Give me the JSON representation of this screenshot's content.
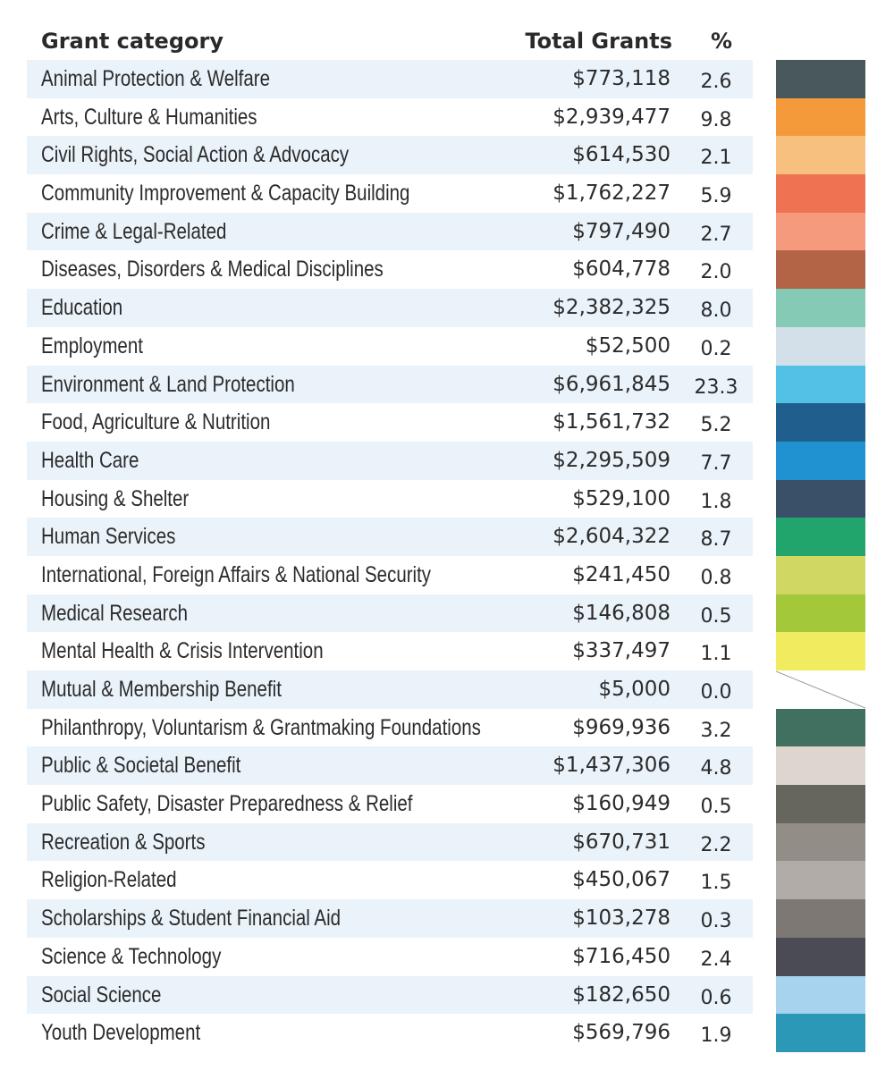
{
  "chart_data": {
    "type": "table",
    "columns": [
      "Grant category",
      "Total Grants",
      "%"
    ],
    "rows": [
      {
        "category": "Animal Protection & Welfare",
        "total": "$773,118",
        "pct": "2.6",
        "color": "#49585a"
      },
      {
        "category": "Arts, Culture & Humanities",
        "total": "$2,939,477",
        "pct": "9.8",
        "color": "#f59a3b"
      },
      {
        "category": "Civil Rights, Social Action & Advocacy",
        "total": "$614,530",
        "pct": "2.1",
        "color": "#f8c07e"
      },
      {
        "category": "Community Improvement & Capacity Building",
        "total": "$1,762,227",
        "pct": "5.9",
        "color": "#ef7352"
      },
      {
        "category": "Crime & Legal-Related",
        "total": "$797,490",
        "pct": "2.7",
        "color": "#f59a7c"
      },
      {
        "category": "Diseases, Disorders & Medical Disciplines",
        "total": "$604,778",
        "pct": "2.0",
        "color": "#b36446"
      },
      {
        "category": "Education",
        "total": "$2,382,325",
        "pct": "8.0",
        "color": "#84cab4"
      },
      {
        "category": "Employment",
        "total": "$52,500",
        "pct": "0.2",
        "color": "#d3e0e9"
      },
      {
        "category": "Environment & Land Protection",
        "total": "$6,961,845",
        "pct": "23.3",
        "color": "#51c1e6"
      },
      {
        "category": "Food, Agriculture & Nutrition",
        "total": "$1,561,732",
        "pct": "5.2",
        "color": "#205e8d"
      },
      {
        "category": "Health Care",
        "total": "$2,295,509",
        "pct": "7.7",
        "color": "#2092d1"
      },
      {
        "category": "Housing & Shelter",
        "total": "$529,100",
        "pct": "1.8",
        "color": "#3a5068"
      },
      {
        "category": "Human Services",
        "total": "$2,604,322",
        "pct": "8.7",
        "color": "#21a56c"
      },
      {
        "category": "International, Foreign Affairs & National Security",
        "total": "$241,450",
        "pct": "0.8",
        "color": "#d0d863"
      },
      {
        "category": "Medical Research",
        "total": "$146,808",
        "pct": "0.5",
        "color": "#a3c83a"
      },
      {
        "category": "Mental Health & Crisis Intervention",
        "total": "$337,497",
        "pct": "1.1",
        "color": "#f1ec5f"
      },
      {
        "category": "Mutual & Membership Benefit",
        "total": "$5,000",
        "pct": "0.0",
        "color": ""
      },
      {
        "category": "Philanthropy, Voluntarism & Grantmaking Foundations",
        "total": "$969,936",
        "pct": "3.2",
        "color": "#427060"
      },
      {
        "category": "Public & Societal Benefit",
        "total": "$1,437,306",
        "pct": "4.8",
        "color": "#ddd5ce"
      },
      {
        "category": "Public Safety, Disaster Preparedness & Relief",
        "total": "$160,949",
        "pct": "0.5",
        "color": "#66665e"
      },
      {
        "category": "Recreation & Sports",
        "total": "$670,731",
        "pct": "2.2",
        "color": "#928e87"
      },
      {
        "category": "Religion-Related",
        "total": "$450,067",
        "pct": "1.5",
        "color": "#b1aca7"
      },
      {
        "category": "Scholarships & Student Financial Aid",
        "total": "$103,278",
        "pct": "0.3",
        "color": "#7e7874"
      },
      {
        "category": "Science & Technology",
        "total": "$716,450",
        "pct": "2.4",
        "color": "#4a4b55"
      },
      {
        "category": "Social Science",
        "total": "$182,650",
        "pct": "0.6",
        "color": "#a7d3ef"
      },
      {
        "category": "Youth Development",
        "total": "$569,796",
        "pct": "1.9",
        "color": "#2b98b7"
      }
    ],
    "shaded_row_color": "#eaf3fa"
  }
}
